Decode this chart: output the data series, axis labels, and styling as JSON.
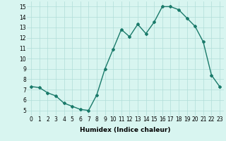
{
  "x": [
    0,
    1,
    2,
    3,
    4,
    5,
    6,
    7,
    8,
    9,
    10,
    11,
    12,
    13,
    14,
    15,
    16,
    17,
    18,
    19,
    20,
    21,
    22,
    23
  ],
  "y": [
    7.3,
    7.2,
    6.7,
    6.4,
    5.7,
    5.4,
    5.1,
    5.0,
    6.5,
    9.0,
    10.9,
    12.8,
    12.1,
    13.3,
    12.4,
    13.5,
    15.0,
    15.0,
    14.7,
    13.9,
    13.1,
    11.6,
    8.4,
    7.3
  ],
  "line_color": "#1a7a6a",
  "marker": "D",
  "marker_size": 2,
  "linewidth": 1.0,
  "bg_color": "#d8f5f0",
  "grid_color": "#b0ddd8",
  "xlabel": "Humidex (Indice chaleur)",
  "ylim": [
    4.5,
    15.5
  ],
  "xlim": [
    -0.5,
    23.5
  ],
  "yticks": [
    5,
    6,
    7,
    8,
    9,
    10,
    11,
    12,
    13,
    14,
    15
  ],
  "xticks": [
    0,
    1,
    2,
    3,
    4,
    5,
    6,
    7,
    8,
    9,
    10,
    11,
    12,
    13,
    14,
    15,
    16,
    17,
    18,
    19,
    20,
    21,
    22,
    23
  ],
  "tick_fontsize": 5.5,
  "xlabel_fontsize": 6.5,
  "xlabel_fontweight": "bold"
}
